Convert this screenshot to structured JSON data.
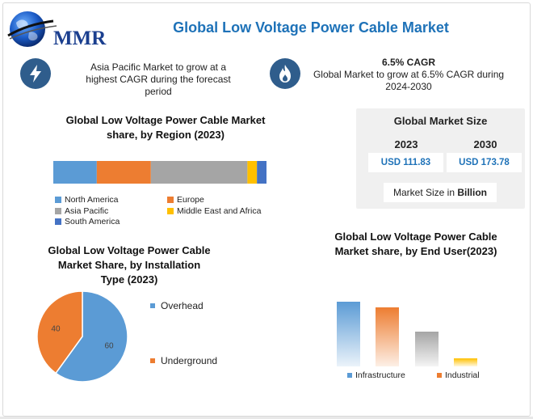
{
  "header": {
    "logo_text": "MMR",
    "title": "Global Low Voltage Power Cable Market"
  },
  "highlights": {
    "left": {
      "icon": "lightning-icon",
      "text_line1": "Asia Pacific Market to grow at a",
      "text_line2": "highest CAGR during the forecast",
      "text_line3": "period"
    },
    "right": {
      "icon": "flame-icon",
      "headline": "6.5% CAGR",
      "text_line1": "Global Market to grow at 6.5% CAGR during",
      "text_line2": "2024-2030"
    }
  },
  "market_size": {
    "title": "Global Market Size",
    "year1": "2023",
    "year2": "2030",
    "value1": "USD 111.83",
    "value2": "USD 173.78",
    "unit_prefix": "Market Size in ",
    "unit_bold": "Billion"
  },
  "colors": {
    "blue": "#5b9bd5",
    "orange": "#ed7d31",
    "gray": "#a5a5a5",
    "yellow": "#ffc000",
    "darkblue": "#4472c4",
    "accent": "#1e72b8",
    "icon_circle": "#2f5d8c"
  },
  "chart_data": [
    {
      "type": "bar",
      "stacked": true,
      "orientation": "horizontal",
      "title_line1": "Global Low Voltage Power Cable Market",
      "title_line2": "share, by Region (2023)",
      "series": [
        {
          "name": "North America",
          "values": [
            20.5
          ]
        },
        {
          "name": "Europe",
          "values": [
            25.5
          ]
        },
        {
          "name": "Asia Pacific",
          "values": [
            45.5
          ]
        },
        {
          "name": "Middle East and Africa",
          "values": [
            4.5
          ]
        },
        {
          "name": "South America",
          "values": [
            4.5
          ]
        }
      ],
      "legend_position": "bottom"
    },
    {
      "type": "pie",
      "title_line1": "Global Low Voltage Power Cable",
      "title_line2": "Market Share, by Installation",
      "title_line3": "Type (2023)",
      "slices": [
        {
          "name": "Overhead",
          "value": 60,
          "label": "60"
        },
        {
          "name": "Underground",
          "value": 40,
          "label": "40"
        }
      ],
      "legend_position": "right"
    },
    {
      "type": "bar",
      "title_line1": "Global Low Voltage Power Cable",
      "title_line2": "Market share, by End User(2023)",
      "categories": [
        "Infrastructure",
        "Industrial",
        "",
        ""
      ],
      "values": [
        80,
        73,
        43,
        10
      ],
      "ylim": [
        0,
        100
      ],
      "legend_position": "bottom"
    }
  ]
}
